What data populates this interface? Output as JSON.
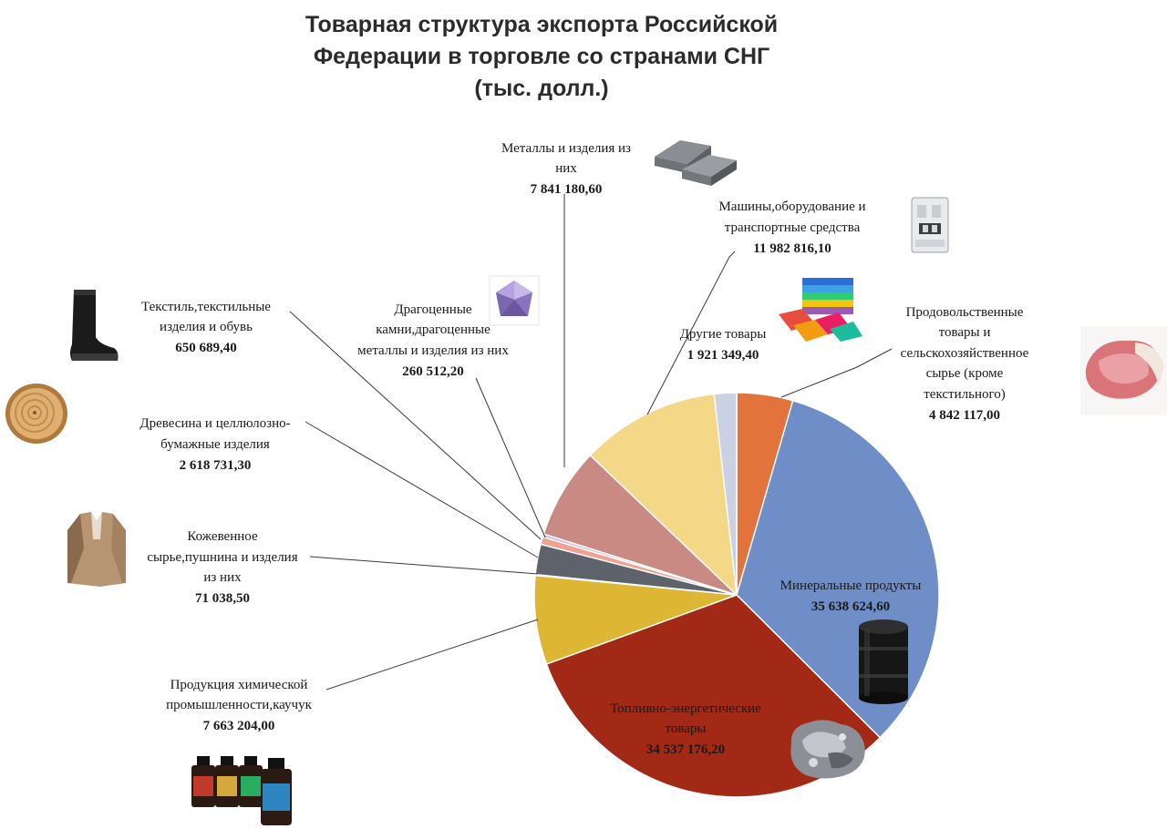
{
  "title_lines": [
    "Товарная структура экспорта Российской",
    "Федерации в торговле со странами СНГ",
    "(тыс. долл.)"
  ],
  "chart_data": {
    "type": "pie",
    "title": "Товарная структура экспорта Российской Федерации в торговле со странами СНГ (тыс. долл.)",
    "start_angle_deg": 0,
    "direction": "clockwise",
    "slices": [
      {
        "name_lines": [
          "Продовольственные",
          "товары и",
          "сельскохозяйственное",
          "сырье (кроме",
          "текстильного)"
        ],
        "value_label": "4 842 117,00",
        "value": 4842117.0,
        "color": "#E2733A"
      },
      {
        "name_lines": [
          "Минеральные продукты"
        ],
        "value_label": "35 638 624,60",
        "value": 35638624.6,
        "color": "#6F8DC7"
      },
      {
        "name_lines": [
          "Топливно-энергетические",
          "товары"
        ],
        "value_label": "34 537 176,20",
        "value": 34537176.2,
        "color": "#A32917"
      },
      {
        "name_lines": [
          "Продукция химической",
          "промышленности,каучук"
        ],
        "value_label": "7 663 204,00",
        "value": 7663204.0,
        "color": "#DDB733"
      },
      {
        "name_lines": [
          "Кожевенное",
          "сырье,пушнина и изделия",
          "из них"
        ],
        "value_label": "71 038,50",
        "value": 71038.5,
        "color": "#8F9BB0"
      },
      {
        "name_lines": [
          "Древесина и целлюлозно-",
          "бумажные изделия"
        ],
        "value_label": "2 618 731,30",
        "value": 2618731.3,
        "color": "#5E636B"
      },
      {
        "name_lines": [
          "Текстиль,текстильные",
          "изделия и обувь"
        ],
        "value_label": "650 689,40",
        "value": 650689.4,
        "color": "#F0A190"
      },
      {
        "name_lines": [
          "Драгоценные",
          "камни,драгоценные",
          "металлы и изделия из них"
        ],
        "value_label": "260 512,20",
        "value": 260512.2,
        "color": "#C9B6D6"
      },
      {
        "name_lines": [
          "Металлы и изделия из",
          "них"
        ],
        "value_label": "7 841 180,60",
        "value": 7841180.6,
        "color": "#C98A84"
      },
      {
        "name_lines": [
          "Машины,оборудование и",
          "транспортные средства"
        ],
        "value_label": "11 982 816,10",
        "value": 11982816.1,
        "color": "#F4D888"
      },
      {
        "name_lines": [
          "Другие товары"
        ],
        "value_label": "1 921 349,40",
        "value": 1921349.4,
        "color": "#CAD1E2"
      }
    ]
  },
  "icons": {
    "metal": "metal-ingots-icon",
    "machine": "circuit-breaker-icon",
    "textile": "fabric-towels-icon",
    "food": "meat-icon",
    "precious": "gemstone-icon",
    "footwear": "boot-icon",
    "wood": "wood-log-icon",
    "leather": "fur-coat-icon",
    "chemical": "chemical-bottles-icon",
    "mineral": "oil-barrel-icon",
    "fuel": "ore-rock-icon"
  }
}
